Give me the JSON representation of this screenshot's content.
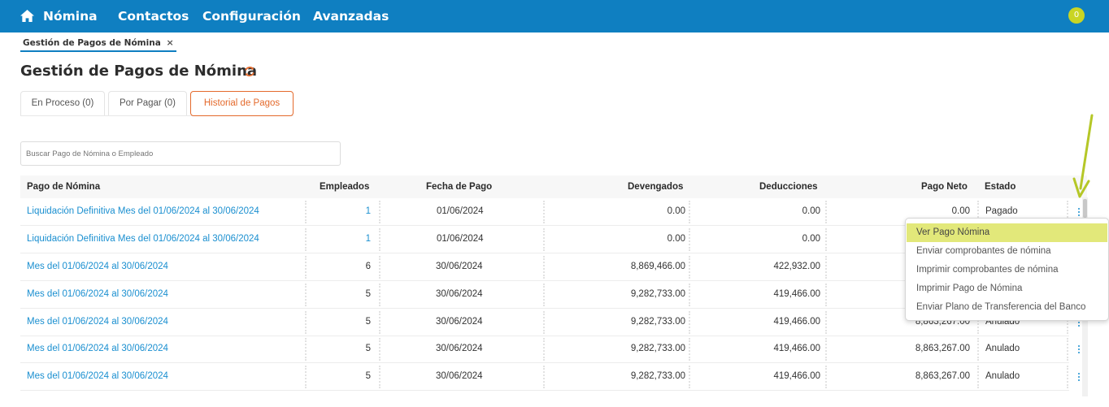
{
  "nav": {
    "items": [
      "Nómina",
      "Contactos",
      "Configuración",
      "Avanzadas"
    ],
    "notifications": "0"
  },
  "breadcrumb": {
    "label": "Gestión de Pagos de Nómina",
    "close": "×"
  },
  "page": {
    "title": "Gestión de Pagos de Nómina"
  },
  "tabs": [
    {
      "label": "En Proceso (0)"
    },
    {
      "label": "Por Pagar (0)"
    },
    {
      "label": "Historial de Pagos"
    }
  ],
  "search": {
    "placeholder": "Buscar Pago de Nómina o Empleado"
  },
  "table": {
    "headers": [
      "Pago de Nómina",
      "Empleados",
      "Fecha de Pago",
      "Devengados",
      "Deducciones",
      "Pago Neto",
      "Estado"
    ],
    "rows": [
      {
        "pago": "Liquidación Definitiva Mes del 01/06/2024 al 30/06/2024",
        "empleados": "1",
        "fecha": "01/06/2024",
        "devengados": "0.00",
        "deducciones": "0.00",
        "neto": "0.00",
        "estado": "Pagado"
      },
      {
        "pago": "Liquidación Definitiva Mes del 01/06/2024 al 30/06/2024",
        "empleados": "1",
        "fecha": "01/06/2024",
        "devengados": "0.00",
        "deducciones": "0.00",
        "neto": "",
        "estado": ""
      },
      {
        "pago": "Mes del 01/06/2024 al 30/06/2024",
        "empleados": "6",
        "fecha": "30/06/2024",
        "devengados": "8,869,466.00",
        "deducciones": "422,932.00",
        "neto": "",
        "estado": ""
      },
      {
        "pago": "Mes del 01/06/2024 al 30/06/2024",
        "empleados": "5",
        "fecha": "30/06/2024",
        "devengados": "9,282,733.00",
        "deducciones": "419,466.00",
        "neto": "",
        "estado": ""
      },
      {
        "pago": "Mes del 01/06/2024 al 30/06/2024",
        "empleados": "5",
        "fecha": "30/06/2024",
        "devengados": "9,282,733.00",
        "deducciones": "419,466.00",
        "neto": "8,863,267.00",
        "estado": "Anulado"
      },
      {
        "pago": "Mes del 01/06/2024 al 30/06/2024",
        "empleados": "5",
        "fecha": "30/06/2024",
        "devengados": "9,282,733.00",
        "deducciones": "419,466.00",
        "neto": "8,863,267.00",
        "estado": "Anulado"
      },
      {
        "pago": "Mes del 01/06/2024 al 30/06/2024",
        "empleados": "5",
        "fecha": "30/06/2024",
        "devengados": "9,282,733.00",
        "deducciones": "419,466.00",
        "neto": "8,863,267.00",
        "estado": "Anulado"
      }
    ]
  },
  "menu": {
    "items": [
      "Ver Pago Nómina",
      "Enviar comprobantes de nómina",
      "Imprimir comprobantes de nómina",
      "Imprimir Pago de Nómina",
      "Enviar Plano de Transferencia del Banco"
    ]
  },
  "colors": {
    "navbar": "#0f7fc1",
    "accent": "#e46a2c",
    "link": "#1a8fd0",
    "highlight": "#e2e87a",
    "badge": "#c9d524",
    "annotation_arrow": "#b5c727"
  }
}
